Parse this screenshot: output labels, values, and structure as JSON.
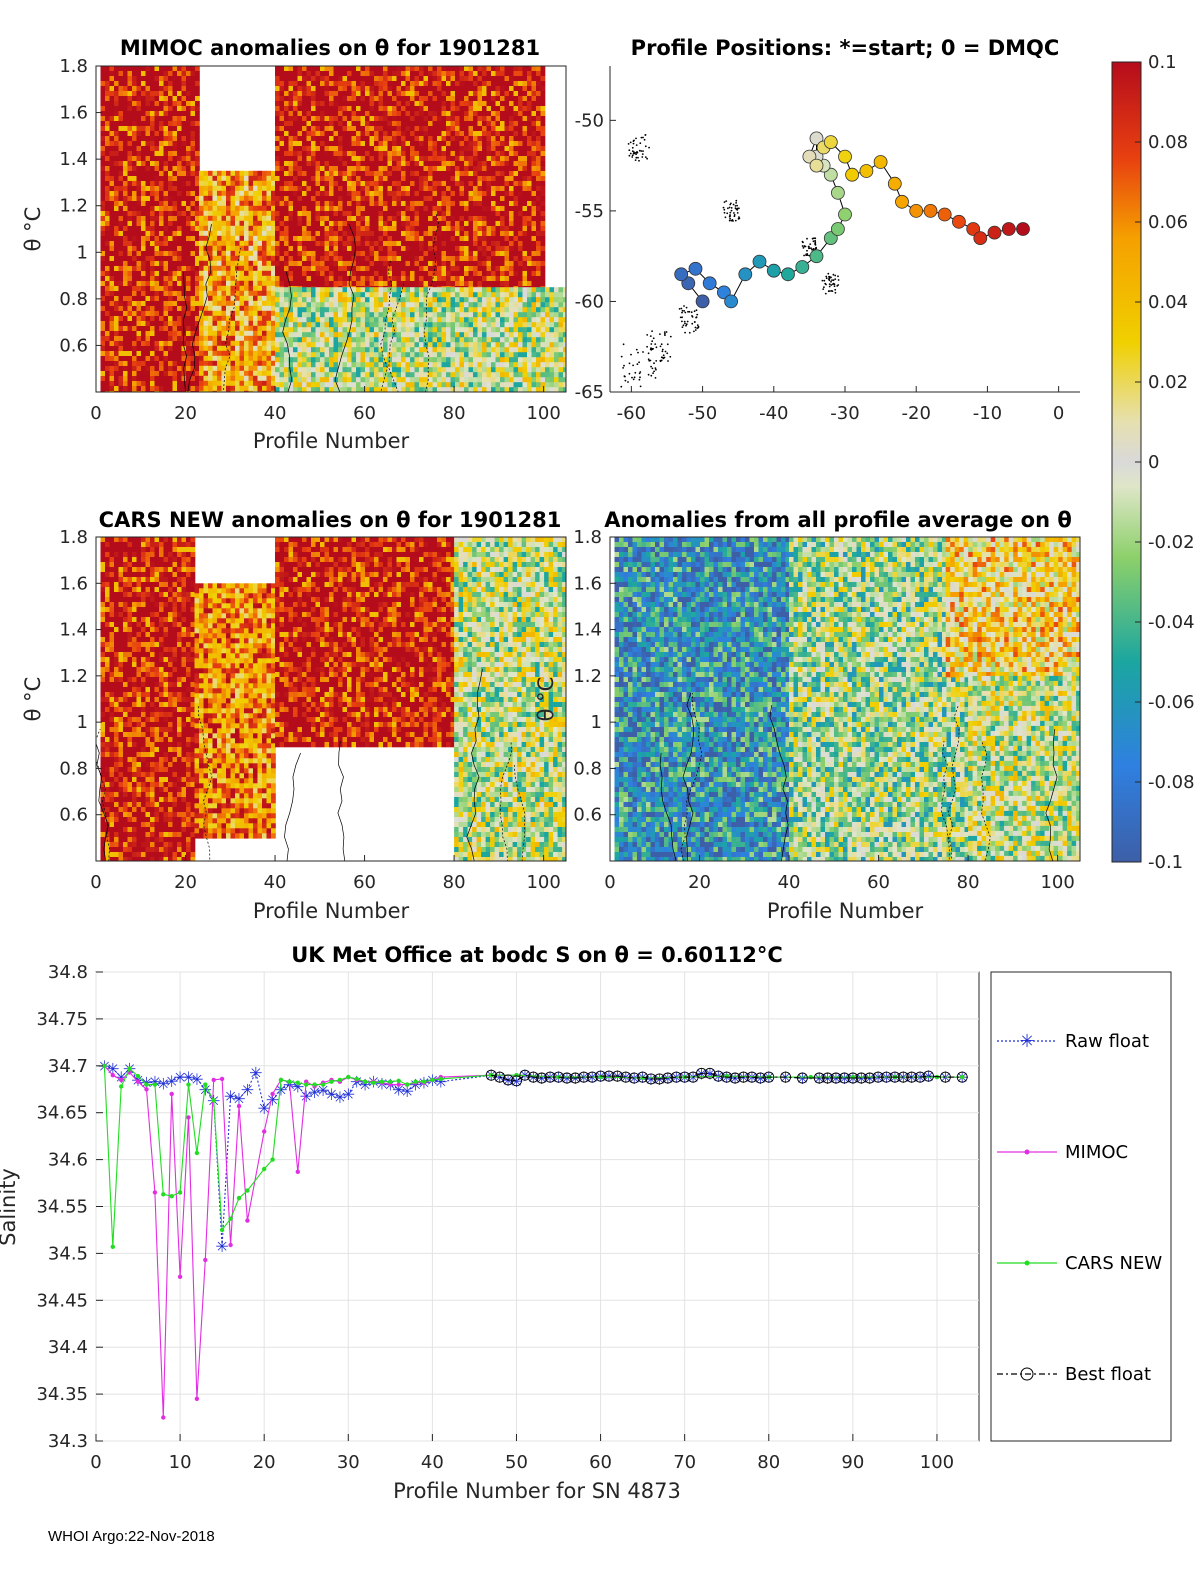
{
  "footer": "WHOI Argo:22-Nov-2018",
  "colors": {
    "anom_pos": "#b50c1c",
    "anom_zero": "#d9d9d9",
    "anom_neg": "#3d5fa8"
  },
  "panel1": {
    "title": "MIMOC anomalies on θ  for 1901281",
    "xlabel": "Profile Number",
    "ylabel": "θ °C",
    "xticks": [
      "0",
      "20",
      "40",
      "60",
      "80",
      "100"
    ],
    "yticks": [
      "0.6",
      "0.8",
      "1",
      "1.2",
      "1.4",
      "1.6",
      "1.8"
    ]
  },
  "panel2": {
    "title": "Profile Positions: *=start; 0 = DMQC",
    "xticks": [
      "-60",
      "-50",
      "-40",
      "-30",
      "-20",
      "-10",
      "0"
    ],
    "yticks": [
      "-50",
      "-55",
      "-60",
      "-65"
    ]
  },
  "panel3": {
    "title": "CARS NEW anomalies on θ for 1901281",
    "xlabel": "Profile Number",
    "ylabel": "θ °C",
    "xticks": [
      "0",
      "20",
      "40",
      "60",
      "80",
      "100"
    ],
    "yticks": [
      "0.6",
      "0.8",
      "1",
      "1.2",
      "1.4",
      "1.6",
      "1.8"
    ]
  },
  "panel4": {
    "title": "Anomalies from all profile average on θ",
    "xlabel": "Profile Number",
    "ylabel": "θ °C",
    "xticks": [
      "0",
      "20",
      "40",
      "60",
      "80",
      "100"
    ],
    "yticks": [
      "0.6",
      "0.8",
      "1",
      "1.2",
      "1.4",
      "1.6",
      "1.8"
    ]
  },
  "colorbar": {
    "ticks": [
      "0.1",
      "0.08",
      "0.06",
      "0.04",
      "0.02",
      "0",
      "-0.02",
      "-0.04",
      "-0.06",
      "-0.08",
      "-0.1"
    ]
  },
  "chart_data": [
    {
      "type": "heatmap",
      "title": "MIMOC anomalies on θ  for 1901281",
      "xlabel": "Profile Number",
      "ylabel": "θ °C",
      "xlim": [
        0,
        105
      ],
      "ylim": [
        0.4,
        1.8
      ],
      "clim": [
        -0.1,
        0.1
      ],
      "regions": [
        {
          "x0": 1,
          "x1": 23,
          "y0": 0.4,
          "y1": 1.8,
          "value": 0.1
        },
        {
          "x0": 23,
          "x1": 40,
          "y0": 0.4,
          "y1": 1.35,
          "value": 0.05
        },
        {
          "x0": 40,
          "x1": 100,
          "y0": 0.85,
          "y1": 1.8,
          "value": 0.1
        },
        {
          "x0": 40,
          "x1": 105,
          "y0": 0.4,
          "y1": 0.85,
          "value": 0.0
        }
      ]
    },
    {
      "type": "scatter",
      "title": "Profile Positions: *=start; 0 = DMQC",
      "xlim": [
        -63,
        3
      ],
      "ylim": [
        -65,
        -47
      ],
      "lon": [
        -50,
        -52,
        -53,
        -51,
        -49,
        -47,
        -46,
        -44,
        -42,
        -40,
        -38,
        -36,
        -34,
        -32,
        -31,
        -30,
        -31,
        -32,
        -33,
        -34,
        -34,
        -35,
        -34,
        -33,
        -32,
        -30,
        -29,
        -27,
        -25,
        -23,
        -22,
        -20,
        -18,
        -16,
        -14,
        -12,
        -11,
        -9,
        -7,
        -5
      ],
      "lat": [
        -60,
        -59,
        -58.5,
        -58.2,
        -59,
        -59.5,
        -60,
        -58.5,
        -57.8,
        -58.3,
        -58.5,
        -58.1,
        -57.5,
        -56.5,
        -56,
        -55.2,
        -54,
        -53,
        -52.5,
        -52,
        -51,
        -52,
        -52.5,
        -51.5,
        -51.2,
        -52,
        -53,
        -52.8,
        -52.3,
        -53.5,
        -54.5,
        -55,
        -55,
        -55.2,
        -55.6,
        -56,
        -56.5,
        -56.2,
        -56,
        -56
      ],
      "colors_by_profile": "blue (start) to red (end)"
    },
    {
      "type": "heatmap",
      "title": "CARS NEW anomalies on θ for 1901281",
      "xlabel": "Profile Number",
      "ylabel": "θ °C",
      "xlim": [
        0,
        105
      ],
      "ylim": [
        0.4,
        1.8
      ],
      "clim": [
        -0.1,
        0.1
      ],
      "regions": [
        {
          "x0": 1,
          "x1": 22,
          "y0": 0.4,
          "y1": 1.8,
          "value": 0.1
        },
        {
          "x0": 22,
          "x1": 40,
          "y0": 0.5,
          "y1": 1.6,
          "value": 0.06
        },
        {
          "x0": 40,
          "x1": 80,
          "y0": 0.9,
          "y1": 1.8,
          "value": 0.1
        },
        {
          "x0": 80,
          "x1": 105,
          "y0": 0.4,
          "y1": 1.8,
          "value": 0.0
        }
      ]
    },
    {
      "type": "heatmap",
      "title": "Anomalies from all profile average on θ",
      "xlabel": "Profile Number",
      "ylabel": "θ °C",
      "xlim": [
        0,
        105
      ],
      "ylim": [
        0.4,
        1.8
      ],
      "clim": [
        -0.1,
        0.1
      ],
      "regions": [
        {
          "x0": 1,
          "x1": 40,
          "y0": 0.4,
          "y1": 1.8,
          "value": -0.06
        },
        {
          "x0": 40,
          "x1": 80,
          "y0": 0.4,
          "y1": 1.8,
          "value": -0.01
        },
        {
          "x0": 75,
          "x1": 105,
          "y0": 1.2,
          "y1": 1.8,
          "value": 0.03
        },
        {
          "x0": 80,
          "x1": 105,
          "y0": 0.4,
          "y1": 1.2,
          "value": 0.0
        }
      ]
    },
    {
      "type": "line",
      "title": "UK Met Office at bodc S on θ = 0.60112°C",
      "xlabel": "Profile Number for SN 4873",
      "ylabel": "Salinity",
      "xlim": [
        0,
        105
      ],
      "ylim": [
        34.3,
        34.8
      ],
      "xticks": [
        "0",
        "10",
        "20",
        "30",
        "40",
        "50",
        "60",
        "70",
        "80",
        "90",
        "100"
      ],
      "yticks": [
        "34.3",
        "34.35",
        "34.4",
        "34.45",
        "34.5",
        "34.55",
        "34.6",
        "34.65",
        "34.7",
        "34.75",
        "34.8"
      ],
      "series": [
        {
          "name": "Raw float",
          "color": "#1f2fd6",
          "x": [
            1,
            2,
            3,
            4,
            5,
            6,
            7,
            8,
            9,
            10,
            11,
            12,
            13,
            14,
            15,
            16,
            17,
            18,
            19,
            20,
            21,
            22,
            23,
            24,
            25,
            26,
            27,
            28,
            29,
            30,
            31,
            32,
            33,
            34,
            35,
            36,
            37,
            38,
            39,
            40,
            41,
            47,
            48,
            49,
            50,
            51,
            52,
            53,
            54,
            55,
            56,
            57,
            58,
            59,
            60,
            61,
            62,
            63,
            64,
            65,
            66,
            67,
            68,
            69,
            70,
            71,
            72,
            73,
            74,
            75,
            76,
            77,
            78,
            79,
            80,
            82,
            84,
            86,
            87,
            88,
            89,
            90,
            91,
            92,
            93,
            94,
            95,
            96,
            97,
            98,
            99,
            101,
            103
          ],
          "y": [
            34.7,
            34.697,
            34.688,
            34.697,
            34.685,
            34.682,
            34.683,
            34.681,
            34.684,
            34.688,
            34.688,
            34.686,
            34.675,
            34.663,
            34.508,
            34.668,
            34.665,
            34.675,
            34.693,
            34.655,
            34.664,
            34.675,
            34.68,
            34.678,
            34.668,
            34.672,
            34.674,
            34.67,
            34.667,
            34.67,
            34.683,
            34.68,
            34.683,
            34.681,
            34.68,
            34.675,
            34.673,
            34.68,
            34.682,
            34.685,
            34.683,
            34.69,
            34.688,
            34.685,
            34.684,
            34.69,
            34.688,
            34.687,
            34.688,
            34.688,
            34.687,
            34.687,
            34.688,
            34.688,
            34.689,
            34.689,
            34.689,
            34.688,
            34.687,
            34.688,
            34.686,
            34.686,
            34.687,
            34.688,
            34.688,
            34.688,
            34.692,
            34.692,
            34.689,
            34.688,
            34.687,
            34.688,
            34.688,
            34.687,
            34.688,
            34.688,
            34.687,
            34.687,
            34.687,
            34.687,
            34.687,
            34.687,
            34.687,
            34.687,
            34.688,
            34.688,
            34.688,
            34.688,
            34.688,
            34.688,
            34.689,
            34.688,
            34.688
          ]
        },
        {
          "name": "MIMOC",
          "color": "#e22ee2",
          "x": [
            1,
            2,
            3,
            4,
            5,
            6,
            7,
            8,
            9,
            10,
            11,
            12,
            13,
            14,
            15,
            16,
            17,
            18,
            20,
            21,
            22,
            23,
            24,
            25,
            26,
            27,
            28,
            29,
            30,
            31,
            32,
            33,
            34,
            35,
            36,
            37,
            38,
            39,
            40,
            41,
            47,
            50,
            55,
            60,
            65,
            70,
            75,
            80,
            85,
            90,
            95,
            100,
            103
          ],
          "y": [
            34.7,
            34.69,
            34.685,
            34.693,
            34.683,
            34.675,
            34.565,
            34.325,
            34.67,
            34.475,
            34.645,
            34.345,
            34.493,
            34.685,
            34.686,
            34.509,
            34.657,
            34.535,
            34.63,
            34.67,
            34.685,
            34.683,
            34.587,
            34.683,
            34.678,
            34.682,
            34.685,
            34.683,
            34.688,
            34.685,
            34.683,
            34.683,
            34.682,
            34.68,
            34.68,
            34.68,
            34.682,
            34.682,
            34.685,
            34.688,
            34.69,
            34.69,
            34.688,
            34.688,
            34.687,
            34.688,
            34.689,
            34.688,
            34.688,
            34.688,
            34.688,
            34.688,
            34.688
          ]
        },
        {
          "name": "CARS NEW",
          "color": "#22dd22",
          "x": [
            1,
            2,
            3,
            4,
            5,
            6,
            7,
            8,
            9,
            10,
            11,
            12,
            13,
            14,
            15,
            16,
            17,
            18,
            20,
            21,
            22,
            23,
            24,
            25,
            26,
            27,
            28,
            29,
            30,
            31,
            32,
            33,
            34,
            35,
            36,
            37,
            38,
            39,
            40,
            41,
            47,
            50,
            55,
            60,
            65,
            70,
            75,
            80,
            85,
            90,
            95,
            100,
            103
          ],
          "y": [
            34.7,
            34.507,
            34.678,
            34.697,
            34.689,
            34.68,
            34.68,
            34.563,
            34.561,
            34.565,
            34.68,
            34.607,
            34.68,
            34.663,
            34.525,
            34.537,
            34.559,
            34.567,
            34.59,
            34.6,
            34.685,
            34.683,
            34.682,
            34.68,
            34.68,
            34.68,
            34.683,
            34.685,
            34.688,
            34.686,
            34.683,
            34.682,
            34.683,
            34.683,
            34.684,
            34.68,
            34.683,
            34.683,
            34.685,
            34.686,
            34.69,
            34.69,
            34.688,
            34.688,
            34.687,
            34.688,
            34.689,
            34.688,
            34.688,
            34.688,
            34.688,
            34.688,
            34.688
          ]
        },
        {
          "name": "Best float",
          "color": "#000000",
          "x": [
            47,
            48,
            49,
            50,
            51,
            52,
            53,
            54,
            55,
            56,
            57,
            58,
            59,
            60,
            61,
            62,
            63,
            64,
            65,
            66,
            67,
            68,
            69,
            70,
            71,
            72,
            73,
            74,
            75,
            76,
            77,
            78,
            79,
            80,
            82,
            84,
            86,
            87,
            88,
            89,
            90,
            91,
            92,
            93,
            94,
            95,
            96,
            97,
            98,
            99,
            101,
            103
          ],
          "y": [
            34.69,
            34.688,
            34.685,
            34.684,
            34.69,
            34.688,
            34.687,
            34.688,
            34.688,
            34.687,
            34.687,
            34.688,
            34.688,
            34.689,
            34.689,
            34.689,
            34.688,
            34.687,
            34.688,
            34.686,
            34.686,
            34.687,
            34.688,
            34.688,
            34.688,
            34.692,
            34.692,
            34.689,
            34.688,
            34.687,
            34.688,
            34.688,
            34.687,
            34.688,
            34.688,
            34.687,
            34.687,
            34.687,
            34.687,
            34.687,
            34.687,
            34.687,
            34.687,
            34.688,
            34.688,
            34.688,
            34.688,
            34.688,
            34.688,
            34.689,
            34.688,
            34.688
          ]
        }
      ]
    }
  ]
}
